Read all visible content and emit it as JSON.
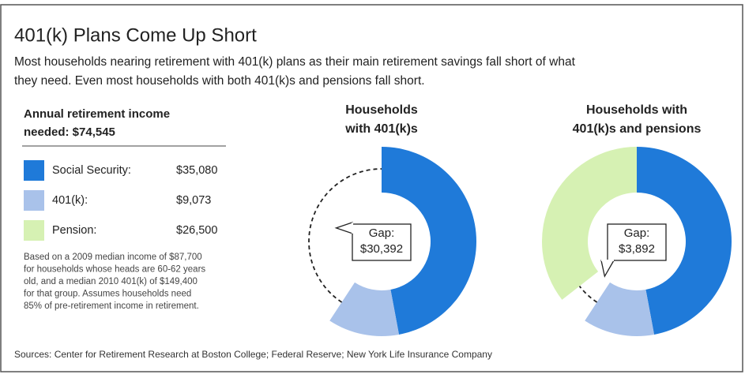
{
  "title": "401(k) Plans Come Up Short",
  "subtitle": [
    "Most households nearing retirement with 401(k) plans as their main retirement savings fall short of what",
    "they need. Even most households with both 401(k)s and pensions fall short."
  ],
  "legend_heading": [
    "Annual retirement income",
    "needed: $74,545"
  ],
  "note": [
    "Based on a 2009 median income of $87,700",
    "for households whose heads are 60-62 years",
    "old, and a median 2010 401(k) of $149,400",
    "for that group. Assumes households need",
    "85% of pre-retirement income in retirement."
  ],
  "source": "Sources: Center for Retirement Research at Boston College; Federal Reserve; New York Life Insurance Company",
  "chart_data": [
    {
      "type": "donut",
      "title": [
        "Households",
        "with 401(k)s"
      ],
      "categories": [
        "Social Security:",
        "401(k):"
      ],
      "values": [
        35080,
        9073
      ],
      "colors": [
        "#1f7ad9",
        "#a9c2ea"
      ],
      "gap_title": "Gap:",
      "gap": 30392,
      "gap_label": "$30,392"
    },
    {
      "type": "donut",
      "title": [
        "Households with",
        "401(k)s and pensions"
      ],
      "categories": [
        "Social Security:",
        "401(k):",
        "Pension:"
      ],
      "values": [
        35080,
        9073,
        26500
      ],
      "value_labels": [
        "$35,080",
        "$9,073",
        "$26,500"
      ],
      "colors": [
        "#1f7ad9",
        "#a9c2ea",
        "#d6f1b3"
      ],
      "gap_title": "Gap:",
      "gap": 3892,
      "gap_label": "$3,892"
    }
  ]
}
